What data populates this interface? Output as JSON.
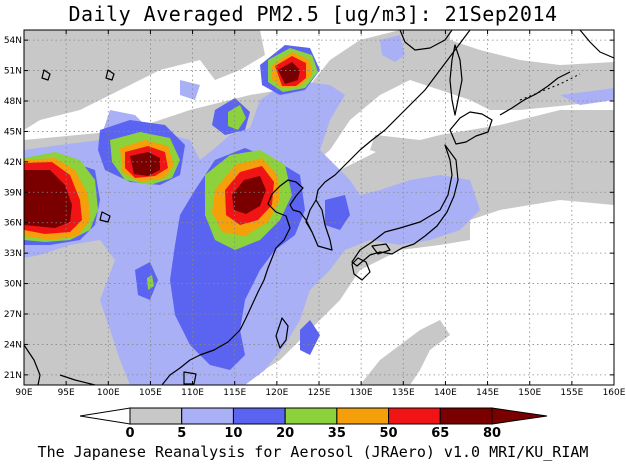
{
  "title": "Daily Averaged PM2.5 [ug/m3]: 21Sep2014",
  "footer": "The Japanese Reanalysis for Aerosol (JRAero) v1.0 MRI/KU_RIAM",
  "map": {
    "lon_range": [
      90,
      160
    ],
    "lat_range": [
      20,
      55
    ],
    "lon_ticks": [
      "90E",
      "95E",
      "100E",
      "105E",
      "110E",
      "115E",
      "120E",
      "125E",
      "130E",
      "135E",
      "140E",
      "145E",
      "150E",
      "155E",
      "160E"
    ],
    "lat_ticks": [
      "21N",
      "24N",
      "27N",
      "30N",
      "33N",
      "36N",
      "39N",
      "42N",
      "45N",
      "48N",
      "51N",
      "54N"
    ]
  },
  "colorbar": {
    "levels": [
      "0",
      "5",
      "10",
      "20",
      "35",
      "50",
      "65",
      "80"
    ],
    "colors": [
      "#ffffff",
      "#c8c8c8",
      "#aab0f5",
      "#5a64f0",
      "#8cd23c",
      "#f5a00a",
      "#f01414",
      "#7a0000"
    ],
    "below_color": "#ffffff",
    "above_color": "#7a0000"
  }
}
